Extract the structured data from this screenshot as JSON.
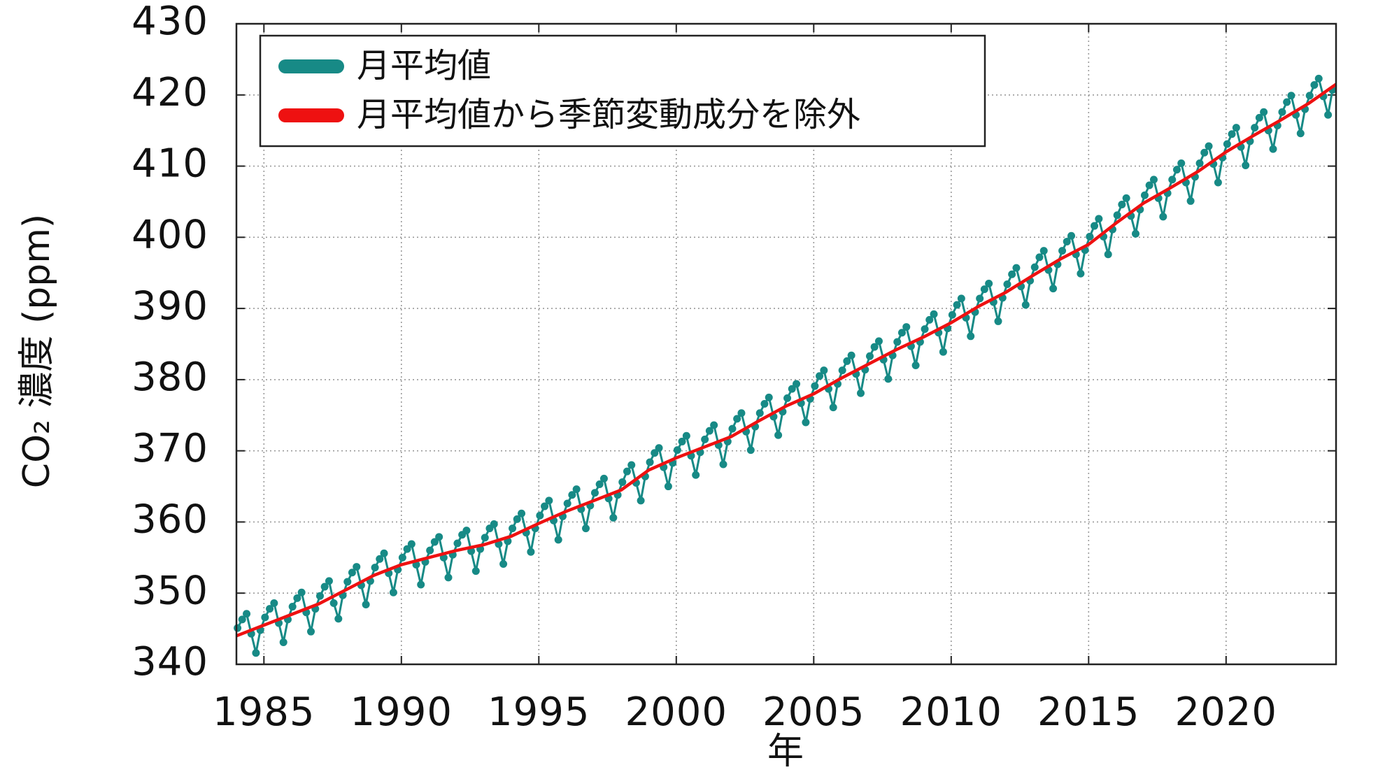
{
  "chart_data": {
    "type": "line",
    "x_label": "年",
    "y_label": "CO₂ 濃度 (ppm)",
    "xlim": [
      1984,
      2024
    ],
    "ylim": [
      340,
      430
    ],
    "xticks": [
      1985,
      1990,
      1995,
      2000,
      2005,
      2010,
      2015,
      2020
    ],
    "yticks": [
      340,
      350,
      360,
      370,
      380,
      390,
      400,
      410,
      420,
      430
    ],
    "grid": true,
    "legend": "upper left",
    "series": [
      {
        "name": "月平均値",
        "color": "#178a86",
        "markers": true,
        "x": [
          1984.04,
          1984.21,
          1984.37,
          1984.54,
          1984.71,
          1984.87,
          1985.04,
          1985.21,
          1985.37,
          1985.54,
          1985.71,
          1985.87,
          1986.04,
          1986.21,
          1986.37,
          1986.54,
          1986.71,
          1986.87,
          1987.04,
          1987.21,
          1987.37,
          1987.54,
          1987.71,
          1987.87,
          1988.04,
          1988.21,
          1988.37,
          1988.54,
          1988.71,
          1988.87,
          1989.04,
          1989.21,
          1989.37,
          1989.54,
          1989.71,
          1989.87,
          1990.04,
          1990.21,
          1990.37,
          1990.54,
          1990.71,
          1990.87,
          1991.04,
          1991.21,
          1991.37,
          1991.54,
          1991.71,
          1991.87,
          1992.04,
          1992.21,
          1992.37,
          1992.54,
          1992.71,
          1992.87,
          1993.04,
          1993.21,
          1993.37,
          1993.54,
          1993.71,
          1993.87,
          1994.04,
          1994.21,
          1994.37,
          1994.54,
          1994.71,
          1994.87,
          1995.04,
          1995.21,
          1995.37,
          1995.54,
          1995.71,
          1995.87,
          1996.04,
          1996.21,
          1996.37,
          1996.54,
          1996.71,
          1996.87,
          1997.04,
          1997.21,
          1997.37,
          1997.54,
          1997.71,
          1997.87,
          1998.04,
          1998.21,
          1998.37,
          1998.54,
          1998.71,
          1998.87,
          1999.04,
          1999.21,
          1999.37,
          1999.54,
          1999.71,
          1999.87,
          2000.04,
          2000.21,
          2000.37,
          2000.54,
          2000.71,
          2000.87,
          2001.04,
          2001.21,
          2001.37,
          2001.54,
          2001.71,
          2001.87,
          2002.04,
          2002.21,
          2002.37,
          2002.54,
          2002.71,
          2002.87,
          2003.04,
          2003.21,
          2003.37,
          2003.54,
          2003.71,
          2003.87,
          2004.04,
          2004.21,
          2004.37,
          2004.54,
          2004.71,
          2004.87,
          2005.04,
          2005.21,
          2005.37,
          2005.54,
          2005.71,
          2005.87,
          2006.04,
          2006.21,
          2006.37,
          2006.54,
          2006.71,
          2006.87,
          2007.04,
          2007.21,
          2007.37,
          2007.54,
          2007.71,
          2007.87,
          2008.04,
          2008.21,
          2008.37,
          2008.54,
          2008.71,
          2008.87,
          2009.04,
          2009.21,
          2009.37,
          2009.54,
          2009.71,
          2009.87,
          2010.04,
          2010.21,
          2010.37,
          2010.54,
          2010.71,
          2010.87,
          2011.04,
          2011.21,
          2011.37,
          2011.54,
          2011.71,
          2011.87,
          2012.04,
          2012.21,
          2012.37,
          2012.54,
          2012.71,
          2012.87,
          2013.04,
          2013.21,
          2013.37,
          2013.54,
          2013.71,
          2013.87,
          2014.04,
          2014.21,
          2014.37,
          2014.54,
          2014.71,
          2014.87,
          2015.04,
          2015.21,
          2015.37,
          2015.54,
          2015.71,
          2015.87,
          2016.04,
          2016.21,
          2016.37,
          2016.54,
          2016.71,
          2016.87,
          2017.04,
          2017.21,
          2017.37,
          2017.54,
          2017.71,
          2017.87,
          2018.04,
          2018.21,
          2018.37,
          2018.54,
          2018.71,
          2018.87,
          2019.04,
          2019.21,
          2019.37,
          2019.54,
          2019.71,
          2019.87,
          2020.04,
          2020.21,
          2020.37,
          2020.54,
          2020.71,
          2020.87,
          2021.04,
          2021.21,
          2021.37,
          2021.54,
          2021.71,
          2021.87,
          2022.04,
          2022.21,
          2022.37,
          2022.54,
          2022.71,
          2022.87,
          2023.04,
          2023.21,
          2023.37,
          2023.54,
          2023.71,
          2023.87
        ],
        "values": [
          345.1,
          346.3,
          347.1,
          344.3,
          341.6,
          344.8,
          346.6,
          347.8,
          348.6,
          345.8,
          343.1,
          346.3,
          348.1,
          349.3,
          350.1,
          347.3,
          344.6,
          347.8,
          349.6,
          350.9,
          351.7,
          348.6,
          346.4,
          349.7,
          351.6,
          352.9,
          353.7,
          351.1,
          348.4,
          351.7,
          353.6,
          354.8,
          355.6,
          352.8,
          350.1,
          353.3,
          355.0,
          356.2,
          356.9,
          354.0,
          351.2,
          354.4,
          356.0,
          357.2,
          357.9,
          355.0,
          352.2,
          355.4,
          357.0,
          358.2,
          358.8,
          355.9,
          353.1,
          356.2,
          357.8,
          359.1,
          359.7,
          356.9,
          354.1,
          357.3,
          359.1,
          360.4,
          361.2,
          358.5,
          355.8,
          359.1,
          360.9,
          362.2,
          363.0,
          360.2,
          357.5,
          360.8,
          362.6,
          363.8,
          364.6,
          361.8,
          359.1,
          362.3,
          364.1,
          365.3,
          366.1,
          363.3,
          360.6,
          363.8,
          365.6,
          367.1,
          368.0,
          365.5,
          363.0,
          366.4,
          368.4,
          369.7,
          370.4,
          367.7,
          365.0,
          368.3,
          370.1,
          371.3,
          372.1,
          369.3,
          366.6,
          369.8,
          371.6,
          372.8,
          373.6,
          370.8,
          368.1,
          371.3,
          373.1,
          374.5,
          375.3,
          372.7,
          370.1,
          373.4,
          375.3,
          376.6,
          377.5,
          374.8,
          372.2,
          375.5,
          377.4,
          378.7,
          379.4,
          376.7,
          374.0,
          377.3,
          379.1,
          380.5,
          381.3,
          378.7,
          376.1,
          379.4,
          381.3,
          382.6,
          383.4,
          380.8,
          378.1,
          381.4,
          383.3,
          384.6,
          385.4,
          382.8,
          380.1,
          383.4,
          385.3,
          386.6,
          387.4,
          384.7,
          382.0,
          385.3,
          387.1,
          388.4,
          389.2,
          386.6,
          383.9,
          387.2,
          389.1,
          390.5,
          391.4,
          388.7,
          386.1,
          389.5,
          391.4,
          392.7,
          393.5,
          390.9,
          388.2,
          391.5,
          393.4,
          394.8,
          395.7,
          393.1,
          390.5,
          393.9,
          395.8,
          397.2,
          398.1,
          395.4,
          392.8,
          396.2,
          398.1,
          399.4,
          400.2,
          397.6,
          394.9,
          398.2,
          400.1,
          401.6,
          402.6,
          400.1,
          397.6,
          401.1,
          403.1,
          404.6,
          405.5,
          403.0,
          400.5,
          403.9,
          405.9,
          407.3,
          408.1,
          405.5,
          402.9,
          406.2,
          408.1,
          409.5,
          410.4,
          407.7,
          405.1,
          408.5,
          410.4,
          411.9,
          412.8,
          410.3,
          407.7,
          411.2,
          413.1,
          414.5,
          415.4,
          412.7,
          410.1,
          413.5,
          415.4,
          416.8,
          417.6,
          415.0,
          412.4,
          415.7,
          417.6,
          419.0,
          419.9,
          417.2,
          414.6,
          418.0,
          419.9,
          421.4,
          422.3,
          419.8,
          417.2,
          420.7
        ]
      },
      {
        "name": "月平均値から季節変動成分を除外",
        "color": "#ee1111",
        "markers": false,
        "x": [
          1984,
          1985,
          1986,
          1987,
          1988,
          1989,
          1990,
          1991,
          1992,
          1993,
          1994,
          1995,
          1996,
          1997,
          1998,
          1999,
          2000,
          2001,
          2002,
          2003,
          2004,
          2005,
          2006,
          2007,
          2008,
          2009,
          2010,
          2011,
          2012,
          2013,
          2014,
          2015,
          2016,
          2017,
          2018,
          2019,
          2020,
          2021,
          2022,
          2023,
          2024
        ],
        "values": [
          344,
          345.5,
          347,
          348.5,
          350.5,
          352.5,
          354,
          355,
          356,
          356.8,
          358,
          359.8,
          361.5,
          363,
          364.5,
          367.3,
          369,
          370.5,
          372,
          374.2,
          376.3,
          378,
          380.2,
          382.2,
          384.2,
          386,
          388,
          390.3,
          392.3,
          394.7,
          397,
          399,
          402,
          404.8,
          407,
          409.3,
          412,
          414.3,
          416.5,
          418.8,
          421.5
        ]
      }
    ]
  }
}
